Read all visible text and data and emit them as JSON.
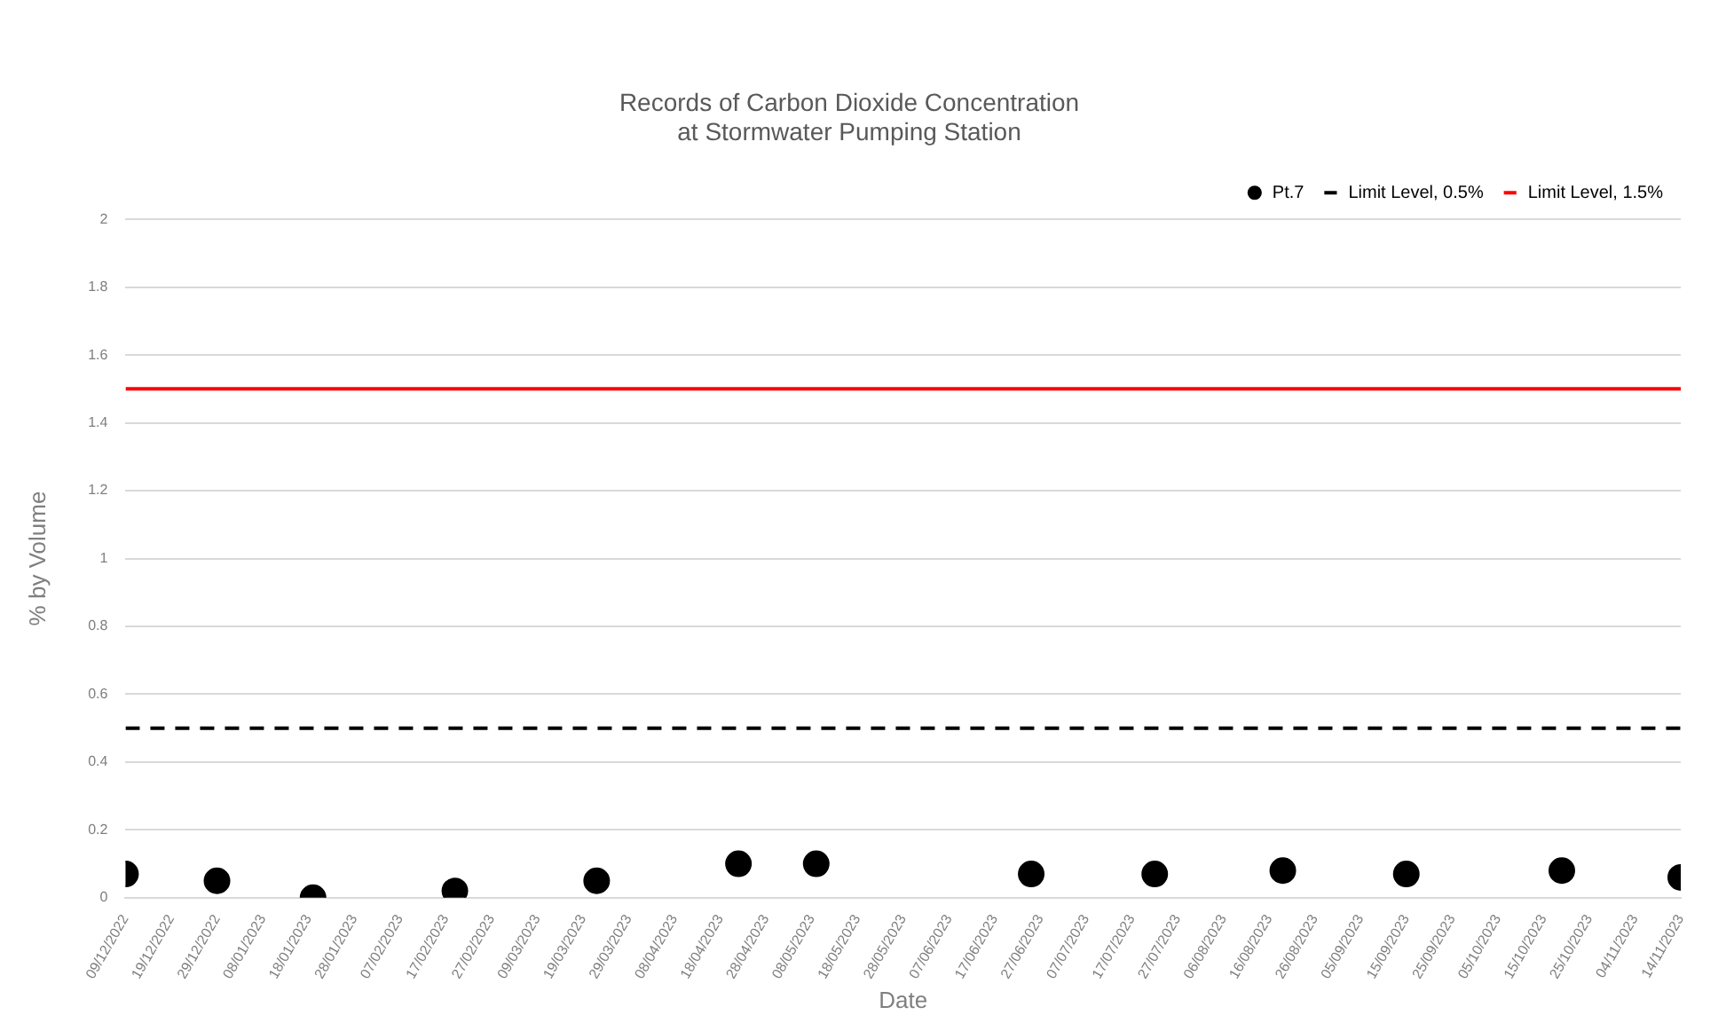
{
  "chart_data": {
    "type": "scatter",
    "title": "Records of Carbon Dioxide Concentration\nat Stormwater Pumping Station",
    "xlabel": "Date",
    "ylabel": "% by Volume",
    "x": [
      "2022-12-09",
      "2022-12-29",
      "2023-01-19",
      "2023-02-19",
      "2023-03-22",
      "2023-04-22",
      "2023-05-09",
      "2023-06-25",
      "2023-07-22",
      "2023-08-19",
      "2023-09-15",
      "2023-10-19",
      "2023-11-14"
    ],
    "series": [
      {
        "name": "Pt.7",
        "color": "#000000",
        "values": [
          0.07,
          0.05,
          0.0,
          0.02,
          0.05,
          0.1,
          0.1,
          0.07,
          0.07,
          0.08,
          0.07,
          0.08,
          0.06
        ]
      }
    ],
    "ref_lines": [
      {
        "axis": "y",
        "value": 0.5,
        "label": "Limit Level, 0.5%",
        "color": "#000000",
        "line_style": "dashed"
      },
      {
        "axis": "y",
        "value": 1.5,
        "label": "Limit Level, 1.5%",
        "color": "#ff0000",
        "line_style": "solid"
      }
    ],
    "xlim": [
      "2022-12-09",
      "2023-11-14"
    ],
    "xticks": [
      {
        "value": "2022-12-09",
        "label": "09/12/2022"
      },
      {
        "value": "2022-12-19",
        "label": "19/12/2022"
      },
      {
        "value": "2022-12-29",
        "label": "29/12/2022"
      },
      {
        "value": "2023-01-08",
        "label": "08/01/2023"
      },
      {
        "value": "2023-01-18",
        "label": "18/01/2023"
      },
      {
        "value": "2023-01-28",
        "label": "28/01/2023"
      },
      {
        "value": "2023-02-07",
        "label": "07/02/2023"
      },
      {
        "value": "2023-02-17",
        "label": "17/02/2023"
      },
      {
        "value": "2023-02-27",
        "label": "27/02/2023"
      },
      {
        "value": "2023-03-09",
        "label": "09/03/2023"
      },
      {
        "value": "2023-03-19",
        "label": "19/03/2023"
      },
      {
        "value": "2023-03-29",
        "label": "29/03/2023"
      },
      {
        "value": "2023-04-08",
        "label": "08/04/2023"
      },
      {
        "value": "2023-04-18",
        "label": "18/04/2023"
      },
      {
        "value": "2023-04-28",
        "label": "28/04/2023"
      },
      {
        "value": "2023-05-08",
        "label": "08/05/2023"
      },
      {
        "value": "2023-05-18",
        "label": "18/05/2023"
      },
      {
        "value": "2023-05-28",
        "label": "28/05/2023"
      },
      {
        "value": "2023-06-07",
        "label": "07/06/2023"
      },
      {
        "value": "2023-06-17",
        "label": "17/06/2023"
      },
      {
        "value": "2023-06-27",
        "label": "27/06/2023"
      },
      {
        "value": "2023-07-07",
        "label": "07/07/2023"
      },
      {
        "value": "2023-07-17",
        "label": "17/07/2023"
      },
      {
        "value": "2023-07-27",
        "label": "27/07/2023"
      },
      {
        "value": "2023-08-06",
        "label": "06/08/2023"
      },
      {
        "value": "2023-08-16",
        "label": "16/08/2023"
      },
      {
        "value": "2023-08-26",
        "label": "26/08/2023"
      },
      {
        "value": "2023-09-05",
        "label": "05/09/2023"
      },
      {
        "value": "2023-09-15",
        "label": "15/09/2023"
      },
      {
        "value": "2023-09-25",
        "label": "25/09/2023"
      },
      {
        "value": "2023-10-05",
        "label": "05/10/2023"
      },
      {
        "value": "2023-10-15",
        "label": "15/10/2023"
      },
      {
        "value": "2023-10-25",
        "label": "25/10/2023"
      },
      {
        "value": "2023-11-04",
        "label": "04/11/2023"
      },
      {
        "value": "2023-11-14",
        "label": "14/11/2023"
      }
    ],
    "ylim": [
      0,
      2
    ],
    "yticks": [
      0,
      0.2,
      0.4,
      0.6,
      0.8,
      1,
      1.2,
      1.4,
      1.6,
      1.8,
      2
    ],
    "grid": "y",
    "legend": "top right",
    "marker": "circle"
  }
}
